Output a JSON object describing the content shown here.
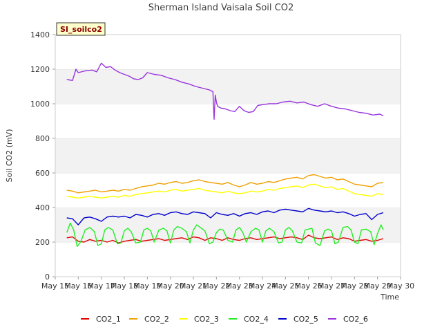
{
  "chart_data": {
    "type": "line",
    "title": "Sherman Island Vaisala Soil CO2",
    "xlabel": "Time",
    "ylabel": "Soil CO2 (mV)",
    "site_tag": "SI_soilco2",
    "x_ticks": [
      "May 15",
      "May 16",
      "May 17",
      "May 18",
      "May 19",
      "May 20",
      "May 21",
      "May 22",
      "May 23",
      "May 24",
      "May 25",
      "May 26",
      "May 27",
      "May 28",
      "May 29",
      "May 30"
    ],
    "xlim": [
      15,
      30
    ],
    "ylim": [
      0,
      1400
    ],
    "y_ticks": [
      0,
      200,
      400,
      600,
      800,
      1000,
      1200,
      1400
    ],
    "grid": "horizontal bands",
    "legend_position": "bottom",
    "series": [
      {
        "name": "CO2_1",
        "color": "#e00000",
        "x": [
          15.5,
          15.75,
          16.0,
          16.25,
          16.5,
          16.75,
          17.0,
          17.25,
          17.5,
          17.75,
          18.0,
          18.25,
          18.5,
          18.75,
          19.0,
          19.25,
          19.5,
          19.75,
          20.0,
          20.25,
          20.5,
          20.75,
          21.0,
          21.25,
          21.5,
          21.75,
          22.0,
          22.25,
          22.5,
          22.75,
          23.0,
          23.25,
          23.5,
          23.75,
          24.0,
          24.25,
          24.5,
          24.75,
          25.0,
          25.25,
          25.5,
          25.75,
          26.0,
          26.25,
          26.5,
          26.75,
          27.0,
          27.25,
          27.5,
          27.75,
          28.0,
          28.25,
          28.5,
          28.75,
          29.0,
          29.25
        ],
        "y": [
          225,
          230,
          205,
          200,
          215,
          205,
          210,
          200,
          210,
          195,
          205,
          210,
          215,
          205,
          210,
          215,
          220,
          210,
          215,
          220,
          225,
          215,
          230,
          225,
          210,
          225,
          220,
          210,
          225,
          215,
          210,
          220,
          225,
          215,
          220,
          225,
          230,
          220,
          225,
          230,
          225,
          215,
          240,
          225,
          220,
          225,
          230,
          215,
          225,
          220,
          205,
          210,
          215,
          205,
          210,
          220
        ]
      },
      {
        "name": "CO2_2",
        "color": "#f0a000",
        "x": [
          15.5,
          15.75,
          16.0,
          16.25,
          16.5,
          16.75,
          17.0,
          17.25,
          17.5,
          17.75,
          18.0,
          18.25,
          18.5,
          18.75,
          19.0,
          19.25,
          19.5,
          19.75,
          20.0,
          20.25,
          20.5,
          20.75,
          21.0,
          21.25,
          21.5,
          21.75,
          22.0,
          22.25,
          22.5,
          22.75,
          23.0,
          23.25,
          23.5,
          23.75,
          24.0,
          24.25,
          24.5,
          24.75,
          25.0,
          25.25,
          25.5,
          25.75,
          26.0,
          26.25,
          26.5,
          26.75,
          27.0,
          27.25,
          27.5,
          27.75,
          28.0,
          28.25,
          28.5,
          28.75,
          29.0,
          29.25
        ],
        "y": [
          500,
          495,
          485,
          490,
          495,
          500,
          490,
          495,
          500,
          495,
          505,
          500,
          510,
          520,
          525,
          530,
          540,
          535,
          545,
          550,
          540,
          545,
          555,
          560,
          550,
          545,
          540,
          535,
          545,
          530,
          520,
          530,
          545,
          535,
          540,
          550,
          545,
          555,
          565,
          570,
          575,
          565,
          585,
          590,
          580,
          570,
          575,
          560,
          565,
          550,
          535,
          530,
          525,
          520,
          540,
          545
        ]
      },
      {
        "name": "CO2_3",
        "color": "#ffff00",
        "x": [
          15.5,
          15.75,
          16.0,
          16.25,
          16.5,
          16.75,
          17.0,
          17.25,
          17.5,
          17.75,
          18.0,
          18.25,
          18.5,
          18.75,
          19.0,
          19.25,
          19.5,
          19.75,
          20.0,
          20.25,
          20.5,
          20.75,
          21.0,
          21.25,
          21.5,
          21.75,
          22.0,
          22.25,
          22.5,
          22.75,
          23.0,
          23.25,
          23.5,
          23.75,
          24.0,
          24.25,
          24.5,
          24.75,
          25.0,
          25.25,
          25.5,
          25.75,
          26.0,
          26.25,
          26.5,
          26.75,
          27.0,
          27.25,
          27.5,
          27.75,
          28.0,
          28.25,
          28.5,
          28.75,
          29.0,
          29.25
        ],
        "y": [
          465,
          460,
          455,
          460,
          465,
          460,
          455,
          460,
          465,
          460,
          470,
          465,
          475,
          480,
          485,
          490,
          495,
          490,
          500,
          505,
          495,
          500,
          505,
          510,
          500,
          495,
          490,
          485,
          495,
          485,
          480,
          485,
          495,
          490,
          495,
          505,
          500,
          510,
          515,
          520,
          525,
          515,
          530,
          535,
          525,
          515,
          520,
          505,
          510,
          495,
          480,
          475,
          470,
          465,
          480,
          475
        ]
      },
      {
        "name": "CO2_4",
        "color": "#22ee22",
        "x": [
          15.5,
          15.65,
          15.8,
          15.95,
          16.1,
          16.3,
          16.5,
          16.7,
          16.85,
          17.0,
          17.15,
          17.3,
          17.5,
          17.7,
          17.85,
          18.0,
          18.15,
          18.3,
          18.5,
          18.7,
          18.85,
          19.0,
          19.15,
          19.3,
          19.5,
          19.7,
          19.85,
          20.0,
          20.15,
          20.3,
          20.5,
          20.7,
          20.85,
          21.0,
          21.15,
          21.3,
          21.5,
          21.7,
          21.85,
          22.0,
          22.15,
          22.3,
          22.5,
          22.7,
          22.85,
          23.0,
          23.15,
          23.3,
          23.5,
          23.7,
          23.85,
          24.0,
          24.15,
          24.3,
          24.5,
          24.7,
          24.85,
          25.0,
          25.15,
          25.3,
          25.5,
          25.7,
          25.85,
          26.0,
          26.15,
          26.3,
          26.5,
          26.7,
          26.85,
          27.0,
          27.15,
          27.3,
          27.5,
          27.7,
          27.85,
          28.0,
          28.15,
          28.3,
          28.5,
          28.7,
          28.85,
          29.0,
          29.15,
          29.25
        ],
        "y": [
          255,
          310,
          270,
          175,
          200,
          270,
          285,
          260,
          180,
          190,
          270,
          285,
          270,
          190,
          195,
          265,
          280,
          260,
          195,
          200,
          270,
          280,
          265,
          200,
          270,
          280,
          265,
          195,
          270,
          290,
          280,
          260,
          195,
          270,
          300,
          285,
          265,
          190,
          200,
          255,
          275,
          270,
          210,
          200,
          270,
          285,
          255,
          200,
          260,
          280,
          270,
          200,
          265,
          280,
          260,
          195,
          200,
          270,
          285,
          265,
          200,
          195,
          270,
          275,
          280,
          195,
          180,
          265,
          275,
          265,
          190,
          200,
          285,
          290,
          270,
          200,
          190,
          270,
          275,
          260,
          185,
          250,
          300,
          270
        ]
      },
      {
        "name": "CO2_5",
        "color": "#0000cc",
        "x": [
          15.5,
          15.75,
          16.0,
          16.25,
          16.5,
          16.75,
          17.0,
          17.25,
          17.5,
          17.75,
          18.0,
          18.25,
          18.5,
          18.75,
          19.0,
          19.25,
          19.5,
          19.75,
          20.0,
          20.25,
          20.5,
          20.75,
          21.0,
          21.25,
          21.5,
          21.75,
          22.0,
          22.25,
          22.5,
          22.75,
          23.0,
          23.25,
          23.5,
          23.75,
          24.0,
          24.25,
          24.5,
          24.75,
          25.0,
          25.25,
          25.5,
          25.75,
          26.0,
          26.25,
          26.5,
          26.75,
          27.0,
          27.25,
          27.5,
          27.75,
          28.0,
          28.25,
          28.5,
          28.75,
          29.0,
          29.25
        ],
        "y": [
          340,
          335,
          300,
          340,
          345,
          335,
          320,
          345,
          350,
          345,
          350,
          340,
          360,
          355,
          345,
          360,
          365,
          355,
          370,
          375,
          365,
          360,
          375,
          370,
          365,
          340,
          370,
          360,
          355,
          365,
          350,
          365,
          370,
          360,
          375,
          380,
          370,
          385,
          390,
          385,
          380,
          375,
          395,
          385,
          380,
          375,
          380,
          370,
          375,
          365,
          350,
          360,
          365,
          330,
          360,
          370
        ]
      },
      {
        "name": "CO2_6",
        "color": "#9933dd",
        "x": [
          15.5,
          15.75,
          15.9,
          16.0,
          16.3,
          16.6,
          16.8,
          17.0,
          17.2,
          17.4,
          17.6,
          17.8,
          18.0,
          18.2,
          18.4,
          18.6,
          18.8,
          19.0,
          19.3,
          19.6,
          19.9,
          20.2,
          20.5,
          20.8,
          21.1,
          21.4,
          21.7,
          21.85,
          21.9,
          21.95,
          22.0,
          22.05,
          22.2,
          22.4,
          22.6,
          22.8,
          23.0,
          23.2,
          23.4,
          23.6,
          23.8,
          24.0,
          24.3,
          24.6,
          24.9,
          25.2,
          25.5,
          25.8,
          26.1,
          26.4,
          26.7,
          27.0,
          27.3,
          27.6,
          27.9,
          28.2,
          28.5,
          28.8,
          29.1,
          29.25
        ],
        "y": [
          1140,
          1135,
          1200,
          1180,
          1190,
          1195,
          1185,
          1235,
          1210,
          1215,
          1195,
          1180,
          1170,
          1160,
          1145,
          1140,
          1150,
          1180,
          1170,
          1165,
          1150,
          1140,
          1125,
          1115,
          1100,
          1090,
          1080,
          1070,
          910,
          1050,
          1010,
          985,
          975,
          970,
          960,
          955,
          985,
          960,
          950,
          955,
          990,
          995,
          1000,
          1000,
          1010,
          1015,
          1005,
          1010,
          995,
          985,
          1000,
          985,
          975,
          970,
          960,
          950,
          945,
          935,
          940,
          930
        ]
      }
    ]
  }
}
